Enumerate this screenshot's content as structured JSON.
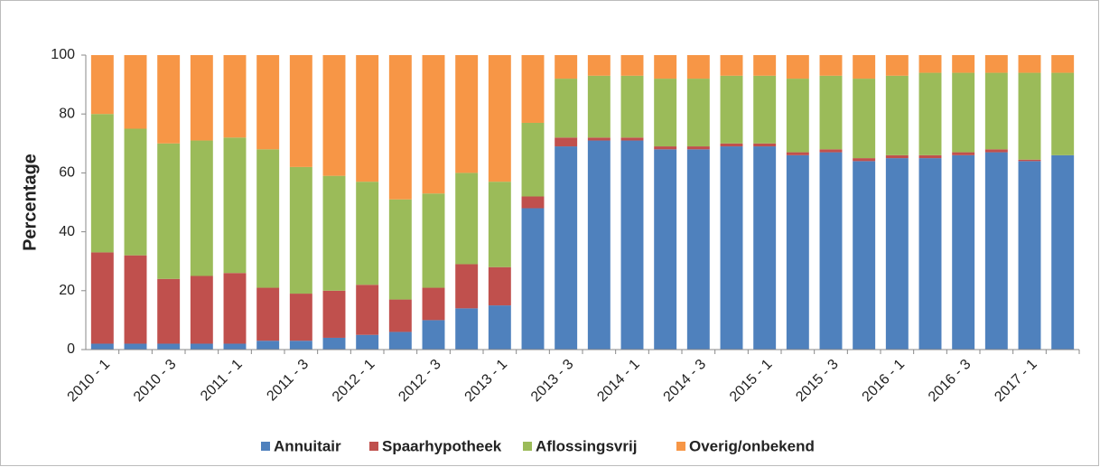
{
  "chart_data": {
    "type": "stacked_bar",
    "y_label": "Percentage",
    "categories": [
      "2010 - 1",
      null,
      "2010 - 3",
      null,
      "2011 - 1",
      null,
      "2011 - 3",
      null,
      "2012 - 1",
      null,
      "2012 - 3",
      null,
      "2013 - 1",
      null,
      "2013 - 3",
      null,
      "2014 - 1",
      null,
      "2014 - 3",
      null,
      "2015 - 1",
      null,
      "2015 - 3",
      null,
      "2016 - 1",
      null,
      "2016 - 3",
      null,
      "2017 - 1",
      null
    ],
    "series": [
      {
        "name": "Annuitair",
        "color": "#4f81bd",
        "values": [
          2,
          2,
          2,
          2,
          2,
          3,
          3,
          4,
          5,
          6,
          10,
          14,
          15,
          48,
          69,
          71,
          71,
          68,
          68,
          69,
          69,
          66,
          67,
          64,
          65,
          65,
          66,
          67,
          64,
          66
        ]
      },
      {
        "name": "Spaarhypotheek",
        "color": "#c0504d",
        "values": [
          31,
          30,
          22,
          23,
          24,
          18,
          16,
          16,
          17,
          11,
          11,
          15,
          13,
          4,
          3,
          1,
          1,
          1,
          1,
          1,
          1,
          1,
          1,
          1,
          1,
          1,
          1,
          1,
          0.5,
          0
        ]
      },
      {
        "name": "Aflossingsvrij",
        "color": "#9bbb59",
        "values": [
          47,
          43,
          46,
          46,
          46,
          47,
          43,
          39,
          35,
          34,
          32,
          31,
          29,
          25,
          20,
          21,
          21,
          23,
          23,
          23,
          23,
          25,
          25,
          27,
          27,
          28,
          27,
          26,
          29.5,
          28
        ]
      },
      {
        "name": "Overig/onbekend",
        "color": "#f79646",
        "values": [
          20,
          25,
          30,
          29,
          28,
          32,
          38,
          41,
          43,
          49,
          47,
          40,
          43,
          23,
          8,
          7,
          7,
          8,
          8,
          7,
          7,
          8,
          7,
          8,
          7,
          6,
          6,
          6,
          6,
          6
        ]
      }
    ],
    "ylim": [
      0,
      100
    ],
    "yticks": [
      0,
      20,
      40,
      60,
      80,
      100
    ],
    "legend": "bottom"
  }
}
